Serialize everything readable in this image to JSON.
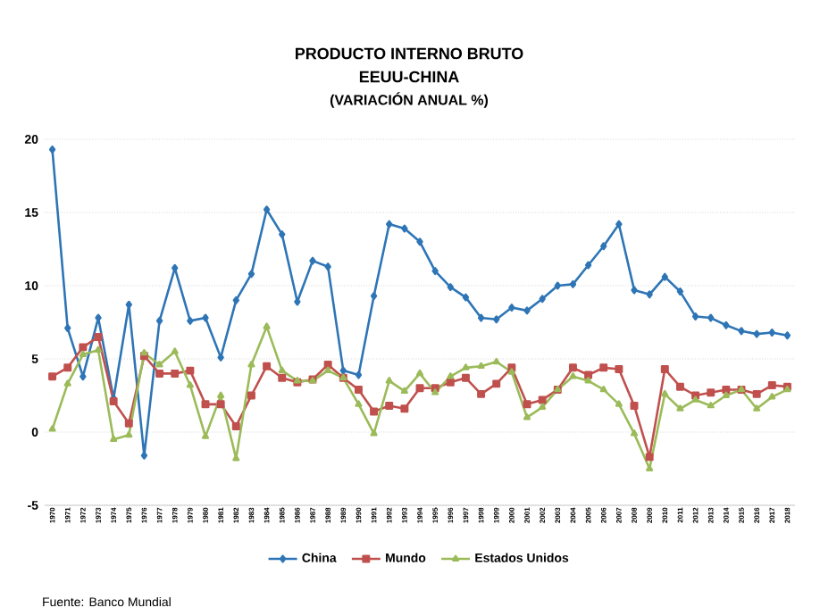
{
  "chart_data": {
    "type": "line",
    "title": "PRODUCTO INTERNO BRUTO",
    "subtitle": "EEUU-CHINA",
    "annotations": [
      "(VARIACIÓN ANUAL %)",
      "Fuente: Banco Mundial"
    ],
    "categories": [
      "1970",
      "1971",
      "1972",
      "1973",
      "1974",
      "1975",
      "1976",
      "1977",
      "1978",
      "1979",
      "1980",
      "1981",
      "1982",
      "1983",
      "1984",
      "1985",
      "1986",
      "1987",
      "1988",
      "1989",
      "1990",
      "1991",
      "1992",
      "1993",
      "1994",
      "1995",
      "1996",
      "1997",
      "1998",
      "1999",
      "2000",
      "2001",
      "2002",
      "2003",
      "2004",
      "2005",
      "2006",
      "2007",
      "2008",
      "2009",
      "2010",
      "2011",
      "2012",
      "2013",
      "2014",
      "2015",
      "2016",
      "2017",
      "2018"
    ],
    "series": [
      {
        "name": "China",
        "color": "#2e75b6",
        "marker": "diamond",
        "values": [
          19.3,
          7.1,
          3.8,
          7.8,
          2.3,
          8.7,
          -1.6,
          7.6,
          11.2,
          7.6,
          7.8,
          5.1,
          9.0,
          10.8,
          15.2,
          13.5,
          8.9,
          11.7,
          11.3,
          4.2,
          3.9,
          9.3,
          14.2,
          13.9,
          13.0,
          11.0,
          9.9,
          9.2,
          7.8,
          7.7,
          8.5,
          8.3,
          9.1,
          10.0,
          10.1,
          11.4,
          12.7,
          14.2,
          9.7,
          9.4,
          10.6,
          9.6,
          7.9,
          7.8,
          7.3,
          6.9,
          6.7,
          6.8,
          6.6
        ]
      },
      {
        "name": "Mundo",
        "color": "#c0504d",
        "marker": "square",
        "values": [
          3.8,
          4.4,
          5.8,
          6.5,
          2.1,
          0.6,
          5.2,
          4.0,
          4.0,
          4.2,
          1.9,
          1.9,
          0.4,
          2.5,
          4.5,
          3.7,
          3.4,
          3.6,
          4.6,
          3.7,
          2.9,
          1.4,
          1.8,
          1.6,
          3.0,
          3.0,
          3.4,
          3.7,
          2.6,
          3.3,
          4.4,
          1.9,
          2.2,
          2.9,
          4.4,
          3.9,
          4.4,
          4.3,
          1.8,
          -1.7,
          4.3,
          3.1,
          2.5,
          2.7,
          2.9,
          2.9,
          2.6,
          3.2,
          3.1
        ]
      },
      {
        "name": "Estados Unidos",
        "color": "#9bbb59",
        "marker": "triangle",
        "values": [
          0.2,
          3.3,
          5.3,
          5.6,
          -0.5,
          -0.2,
          5.4,
          4.6,
          5.5,
          3.2,
          -0.3,
          2.5,
          -1.8,
          4.6,
          7.2,
          4.2,
          3.5,
          3.5,
          4.2,
          3.7,
          1.9,
          -0.1,
          3.5,
          2.8,
          4.0,
          2.7,
          3.8,
          4.4,
          4.5,
          4.8,
          4.1,
          1.0,
          1.7,
          2.9,
          3.8,
          3.5,
          2.9,
          1.9,
          -0.1,
          -2.5,
          2.6,
          1.6,
          2.2,
          1.8,
          2.5,
          2.9,
          1.6,
          2.4,
          2.9
        ]
      }
    ],
    "ylim": [
      -5,
      20
    ],
    "yticks": [
      -5,
      0,
      5,
      10,
      15,
      20
    ],
    "grid": "y",
    "legend": "bottom",
    "line_style": "solid"
  }
}
